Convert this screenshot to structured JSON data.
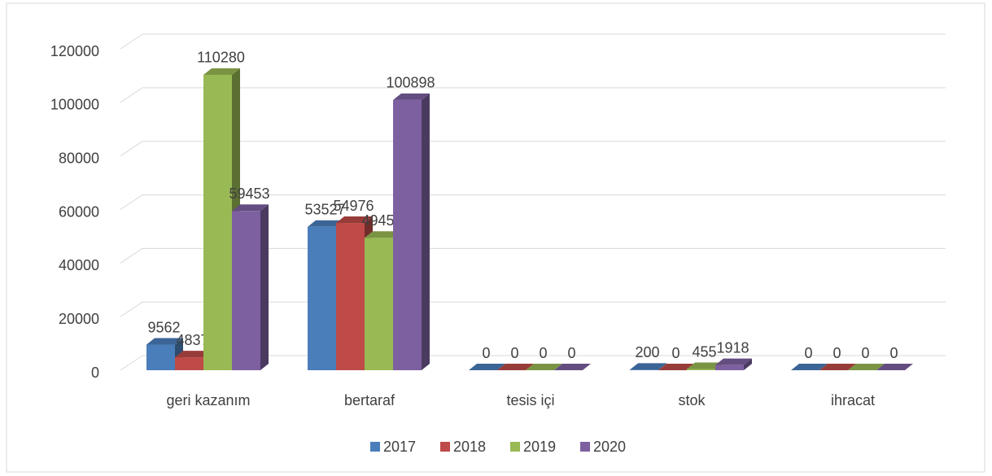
{
  "chart_data": {
    "type": "bar3d",
    "categories": [
      "geri kazanım",
      "bertaraf",
      "tesis içi",
      "stok",
      "ihracat"
    ],
    "series": [
      {
        "name": "2017",
        "color": "#4a7ebb",
        "values": [
          9562,
          53527,
          0,
          200,
          0
        ]
      },
      {
        "name": "2018",
        "color": "#be4b48",
        "values": [
          4837,
          54976,
          0,
          0,
          0
        ]
      },
      {
        "name": "2019",
        "color": "#98b954",
        "values": [
          110280,
          49457,
          0,
          455,
          0
        ]
      },
      {
        "name": "2020",
        "color": "#7d60a0",
        "values": [
          59453,
          100898,
          0,
          1918,
          0
        ]
      }
    ],
    "ylim": [
      0,
      120000
    ],
    "yticks": [
      0,
      20000,
      40000,
      60000,
      80000,
      100000,
      120000
    ],
    "grid": true,
    "legend": "bottom"
  }
}
